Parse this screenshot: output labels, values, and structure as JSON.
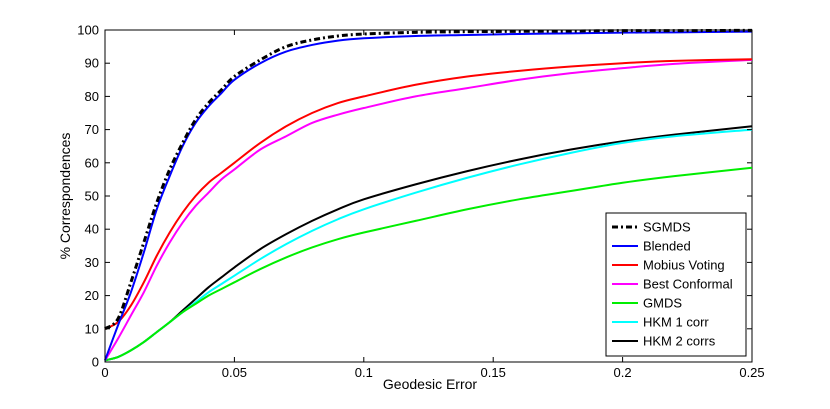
{
  "chart_data": {
    "type": "line",
    "title": "",
    "xlabel": "Geodesic Error",
    "ylabel": "% Correspondences",
    "xlim": [
      0,
      0.25
    ],
    "ylim": [
      0,
      100
    ],
    "xticks": [
      0,
      0.05,
      0.1,
      0.15,
      0.2,
      0.25
    ],
    "xtick_labels": [
      "0",
      "0.05",
      "0.1",
      "0.15",
      "0.2",
      "0.25"
    ],
    "yticks": [
      0,
      10,
      20,
      30,
      40,
      50,
      60,
      70,
      80,
      90,
      100
    ],
    "ytick_labels": [
      "0",
      "10",
      "20",
      "30",
      "40",
      "50",
      "60",
      "70",
      "80",
      "90",
      "100"
    ],
    "grid": false,
    "legend_position": "bottom-right",
    "x": [
      0,
      0.005,
      0.01,
      0.015,
      0.02,
      0.025,
      0.03,
      0.035,
      0.04,
      0.045,
      0.05,
      0.06,
      0.07,
      0.08,
      0.09,
      0.1,
      0.12,
      0.14,
      0.16,
      0.18,
      0.2,
      0.22,
      0.25
    ],
    "series": [
      {
        "name": "SGMDS",
        "color": "#000000",
        "dash": "dashdot",
        "values": [
          10,
          13,
          24,
          36,
          48,
          58,
          66,
          73,
          78,
          82,
          86,
          91,
          95,
          97,
          98.2,
          98.8,
          99.3,
          99.5,
          99.6,
          99.7,
          99.8,
          99.8,
          99.9
        ]
      },
      {
        "name": "Blended",
        "color": "#0000ff",
        "dash": "solid",
        "values": [
          0.5,
          11,
          21,
          33,
          46,
          56,
          65,
          72,
          77,
          81,
          85,
          90,
          93.5,
          95.5,
          96.8,
          97.5,
          98.2,
          98.5,
          98.8,
          99,
          99.2,
          99.3,
          99.5
        ]
      },
      {
        "name": "Mobius Voting",
        "color": "#ff0000",
        "dash": "solid",
        "values": [
          10,
          12,
          17,
          24,
          32,
          39,
          45,
          50,
          54,
          57,
          60,
          66,
          71,
          75,
          78,
          80,
          83.5,
          86,
          87.7,
          89,
          90,
          90.7,
          91.2
        ]
      },
      {
        "name": "Best Conformal",
        "color": "#ff00ff",
        "dash": "solid",
        "values": [
          0.5,
          7,
          14,
          21,
          29,
          36,
          42,
          47,
          51,
          55,
          58,
          64,
          68,
          72,
          74.5,
          76.5,
          80,
          82.5,
          85,
          87,
          88.5,
          89.8,
          91
        ]
      },
      {
        "name": "GMDS",
        "color": "#00ee00",
        "dash": "solid",
        "values": [
          0.5,
          1.5,
          3.5,
          6,
          9,
          12,
          15,
          17.5,
          20,
          22,
          24,
          28,
          31.5,
          34.5,
          37,
          39,
          42.5,
          46,
          49,
          51.5,
          54,
          56,
          58.5
        ]
      },
      {
        "name": "HKM 1 corr",
        "color": "#00ffff",
        "dash": "solid",
        "values": [
          0.5,
          1.5,
          3.5,
          6,
          9,
          12,
          15,
          18,
          21,
          23.5,
          26,
          31,
          35.5,
          39.5,
          43,
          46,
          51,
          55.5,
          59.5,
          63,
          66,
          68,
          70
        ]
      },
      {
        "name": "HKM 2 corrs",
        "color": "#000000",
        "dash": "solid",
        "values": [
          0.5,
          1.5,
          3.5,
          6,
          9,
          12,
          15.5,
          19,
          22.5,
          25.5,
          28.5,
          34,
          38.5,
          42.5,
          46,
          49,
          53.5,
          57.5,
          61,
          64,
          66.5,
          68.5,
          71
        ]
      }
    ]
  }
}
